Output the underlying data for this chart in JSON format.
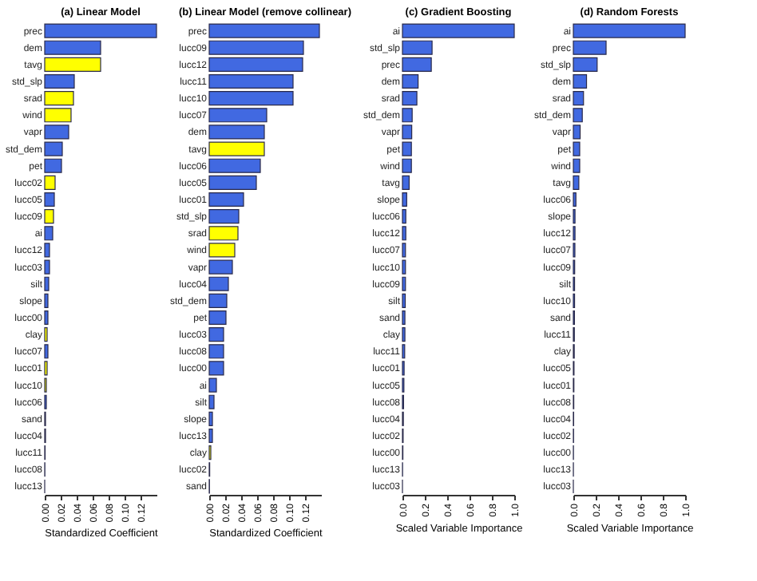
{
  "chart_data": [
    {
      "type": "bar",
      "orientation": "horizontal",
      "title": "(a) Linear Model",
      "xlabel": "Standardized Coefficient",
      "categories": [
        "prec",
        "dem",
        "tavg",
        "std_slp",
        "srad",
        "wind",
        "vapr",
        "std_dem",
        "pet",
        "lucc02",
        "lucc05",
        "lucc09",
        "ai",
        "lucc12",
        "lucc03",
        "silt",
        "slope",
        "lucc00",
        "clay",
        "lucc07",
        "lucc01",
        "lucc10",
        "lucc06",
        "sand",
        "lucc04",
        "lucc11",
        "lucc08",
        "lucc13"
      ],
      "values": [
        0.14,
        0.07,
        0.07,
        0.037,
        0.036,
        0.033,
        0.03,
        0.022,
        0.021,
        0.013,
        0.012,
        0.011,
        0.01,
        0.006,
        0.006,
        0.005,
        0.004,
        0.004,
        0.003,
        0.004,
        0.003,
        0.002,
        0.002,
        0.001,
        0.001,
        0.0005,
        0.0002,
        0
      ],
      "colors": [
        "#4169e1",
        "#4169e1",
        "#ffff00",
        "#4169e1",
        "#ffff00",
        "#ffff00",
        "#4169e1",
        "#4169e1",
        "#4169e1",
        "#ffff00",
        "#4169e1",
        "#ffff00",
        "#4169e1",
        "#4169e1",
        "#4169e1",
        "#4169e1",
        "#4169e1",
        "#4169e1",
        "#ffff00",
        "#4169e1",
        "#ffff00",
        "#ffff00",
        "#4169e1",
        "#4169e1",
        "#4169e1",
        "#4169e1",
        "#4169e1",
        "#4169e1"
      ],
      "xlim": [
        0,
        0.14
      ],
      "xticks": [
        {
          "value": 0,
          "label": "0.00"
        },
        {
          "value": 0.02,
          "label": "0.02"
        },
        {
          "value": 0.04,
          "label": "0.04"
        },
        {
          "value": 0.06,
          "label": "0.06"
        },
        {
          "value": 0.08,
          "label": "0.08"
        },
        {
          "value": 0.1,
          "label": "0.10"
        },
        {
          "value": 0.12,
          "label": "0.12"
        }
      ]
    },
    {
      "type": "bar",
      "orientation": "horizontal",
      "title": "(b) Linear Model (remove collinear)",
      "xlabel": "Standardized Coefficient",
      "categories": [
        "prec",
        "lucc09",
        "lucc12",
        "lucc11",
        "lucc10",
        "lucc07",
        "dem",
        "tavg",
        "lucc06",
        "lucc05",
        "lucc01",
        "std_slp",
        "srad",
        "wind",
        "vapr",
        "lucc04",
        "std_dem",
        "pet",
        "lucc03",
        "lucc08",
        "lucc00",
        "ai",
        "silt",
        "slope",
        "lucc13",
        "clay",
        "lucc02",
        "sand"
      ],
      "values": [
        0.138,
        0.118,
        0.117,
        0.105,
        0.105,
        0.072,
        0.069,
        0.069,
        0.064,
        0.059,
        0.043,
        0.037,
        0.036,
        0.032,
        0.029,
        0.024,
        0.022,
        0.021,
        0.018,
        0.018,
        0.018,
        0.009,
        0.006,
        0.004,
        0.004,
        0.002,
        0.0006,
        0.0003
      ],
      "colors": [
        "#4169e1",
        "#4169e1",
        "#4169e1",
        "#4169e1",
        "#4169e1",
        "#4169e1",
        "#4169e1",
        "#ffff00",
        "#4169e1",
        "#4169e1",
        "#4169e1",
        "#4169e1",
        "#ffff00",
        "#ffff00",
        "#4169e1",
        "#4169e1",
        "#4169e1",
        "#4169e1",
        "#4169e1",
        "#4169e1",
        "#4169e1",
        "#4169e1",
        "#4169e1",
        "#4169e1",
        "#4169e1",
        "#ffff00",
        "#4169e1",
        "#4169e1"
      ],
      "xlim": [
        0,
        0.14
      ],
      "xticks": [
        {
          "value": 0,
          "label": "0.00"
        },
        {
          "value": 0.02,
          "label": "0.02"
        },
        {
          "value": 0.04,
          "label": "0.04"
        },
        {
          "value": 0.06,
          "label": "0.06"
        },
        {
          "value": 0.08,
          "label": "0.08"
        },
        {
          "value": 0.1,
          "label": "0.10"
        },
        {
          "value": 0.12,
          "label": "0.12"
        }
      ]
    },
    {
      "type": "bar",
      "orientation": "horizontal",
      "title": "(c) Gradient Boosting",
      "xlabel": "Scaled Variable Importance",
      "color": "#4169e1",
      "categories": [
        "ai",
        "std_slp",
        "prec",
        "dem",
        "srad",
        "std_dem",
        "vapr",
        "pet",
        "wind",
        "tavg",
        "slope",
        "lucc06",
        "lucc12",
        "lucc07",
        "lucc10",
        "lucc09",
        "silt",
        "sand",
        "clay",
        "lucc11",
        "lucc01",
        "lucc05",
        "lucc08",
        "lucc04",
        "lucc02",
        "lucc00",
        "lucc13",
        "lucc03"
      ],
      "values": [
        1,
        0.265,
        0.258,
        0.14,
        0.129,
        0.087,
        0.083,
        0.08,
        0.08,
        0.06,
        0.038,
        0.03,
        0.03,
        0.027,
        0.027,
        0.027,
        0.025,
        0.022,
        0.022,
        0.02,
        0.015,
        0.013,
        0.01,
        0.008,
        0.006,
        0.004,
        0.001,
        0
      ],
      "xlim": [
        0,
        1
      ],
      "xticks": [
        {
          "value": 0,
          "label": "0.0"
        },
        {
          "value": 0.2,
          "label": "0.2"
        },
        {
          "value": 0.4,
          "label": "0.4"
        },
        {
          "value": 0.6,
          "label": "0.6"
        },
        {
          "value": 0.8,
          "label": "0.8"
        },
        {
          "value": 1,
          "label": "1.0"
        }
      ]
    },
    {
      "type": "bar",
      "orientation": "horizontal",
      "title": "(d) Random Forests",
      "xlabel": "Scaled Variable Importance",
      "color": "#4169e1",
      "categories": [
        "ai",
        "prec",
        "std_slp",
        "dem",
        "srad",
        "std_dem",
        "vapr",
        "pet",
        "wind",
        "tavg",
        "lucc06",
        "slope",
        "lucc12",
        "lucc07",
        "lucc09",
        "silt",
        "lucc10",
        "sand",
        "lucc11",
        "clay",
        "lucc05",
        "lucc01",
        "lucc08",
        "lucc04",
        "lucc02",
        "lucc00",
        "lucc13",
        "lucc03"
      ],
      "values": [
        1,
        0.293,
        0.213,
        0.118,
        0.091,
        0.08,
        0.061,
        0.057,
        0.057,
        0.049,
        0.023,
        0.015,
        0.015,
        0.014,
        0.012,
        0.011,
        0.011,
        0.01,
        0.009,
        0.008,
        0.006,
        0.005,
        0.004,
        0.003,
        0.002,
        0.001,
        0.0005,
        0
      ],
      "xlim": [
        0,
        1
      ],
      "xticks": [
        {
          "value": 0,
          "label": "0.0"
        },
        {
          "value": 0.2,
          "label": "0.2"
        },
        {
          "value": 0.4,
          "label": "0.4"
        },
        {
          "value": 0.6,
          "label": "0.6"
        },
        {
          "value": 0.8,
          "label": "0.8"
        },
        {
          "value": 1,
          "label": "1.0"
        }
      ]
    }
  ]
}
